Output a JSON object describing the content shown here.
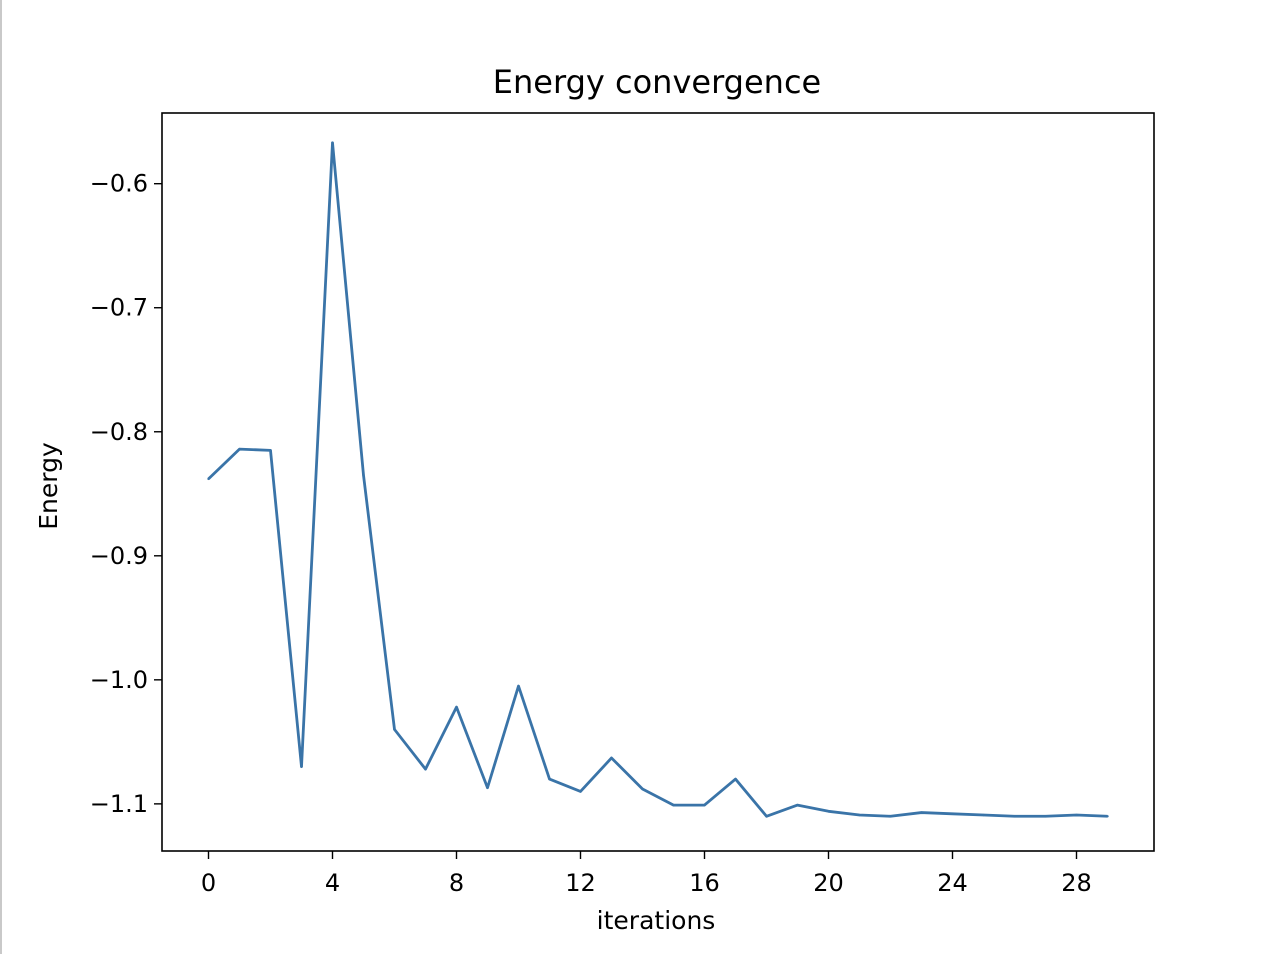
{
  "chart_data": {
    "type": "line",
    "title": "Energy convergence",
    "xlabel": "iterations",
    "ylabel": "Energy",
    "x": [
      0,
      1,
      2,
      3,
      4,
      5,
      6,
      7,
      8,
      9,
      10,
      11,
      12,
      13,
      14,
      15,
      16,
      17,
      18,
      19,
      20,
      21,
      22,
      23,
      24,
      25,
      26,
      27,
      28,
      29
    ],
    "series": [
      {
        "values": [
          -0.838,
          -0.814,
          -0.815,
          -1.07,
          -0.567,
          -0.835,
          -1.04,
          -1.072,
          -1.022,
          -1.087,
          -1.005,
          -1.08,
          -1.09,
          -1.063,
          -1.088,
          -1.101,
          -1.101,
          -1.08,
          -1.11,
          -1.101,
          -1.106,
          -1.109,
          -1.11,
          -1.107,
          -1.108,
          -1.109,
          -1.11,
          -1.11,
          -1.109,
          -1.11
        ],
        "color": "#3a74a8"
      }
    ],
    "xlim": [
      -1.5,
      30.5
    ],
    "ylim": [
      -1.138,
      -0.543
    ],
    "xticks": [
      0,
      4,
      8,
      12,
      16,
      20,
      24,
      28
    ],
    "xtick_labels": [
      "0",
      "4",
      "8",
      "12",
      "16",
      "20",
      "24",
      "28"
    ],
    "yticks": [
      -0.6,
      -0.7,
      -0.8,
      -0.9,
      -1.0,
      -1.1
    ],
    "ytick_labels": [
      "−0.6",
      "−0.7",
      "−0.8",
      "−0.9",
      "−1.0",
      "−1.1"
    ],
    "grid": false,
    "legend": "none"
  }
}
